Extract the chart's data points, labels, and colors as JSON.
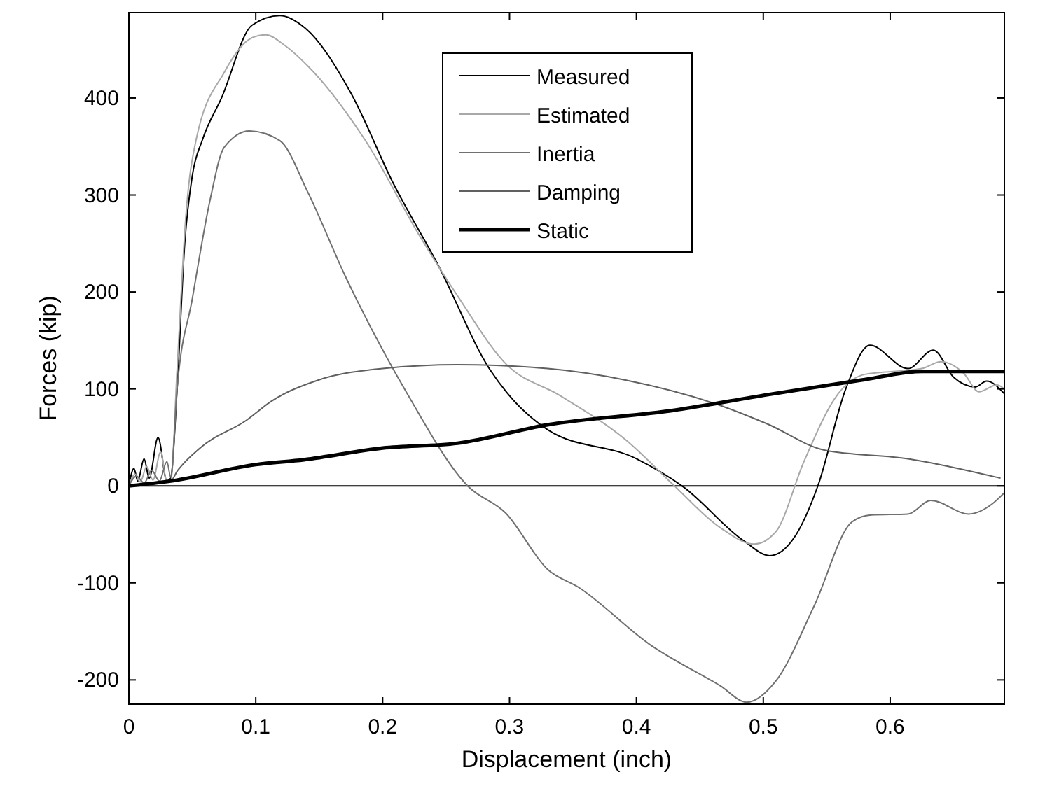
{
  "chart_data": {
    "type": "line",
    "xlabel": "Displacement (inch)",
    "ylabel": "Forces (kip)",
    "xlim": [
      0,
      0.69
    ],
    "ylim": [
      -225,
      488
    ],
    "xticks": [
      0,
      0.1,
      0.2,
      0.3,
      0.4,
      0.5,
      0.6
    ],
    "yticks": [
      -200,
      -100,
      0,
      100,
      200,
      300,
      400
    ],
    "grid": false,
    "legend": "top",
    "marker": "none",
    "line_style": "solid",
    "ref_lines": [
      {
        "axis": "y",
        "value": 0,
        "color": "#000000"
      }
    ],
    "series": [
      {
        "name": "Measured",
        "color": "#000000",
        "x": [
          0,
          0.004,
          0.007,
          0.012,
          0.016,
          0.023,
          0.03,
          0.033,
          0.038,
          0.044,
          0.05,
          0.058,
          0.073,
          0.097,
          0.119,
          0.139,
          0.175,
          0.208,
          0.244,
          0.285,
          0.298,
          0.33,
          0.4,
          0.437,
          0.485,
          0.505,
          0.525,
          0.543,
          0.565,
          0.584,
          0.614,
          0.634,
          0.65,
          0.667,
          0.676,
          0.69
        ],
        "values": [
          0,
          18,
          5,
          28,
          8,
          50,
          5,
          8,
          100,
          250,
          320,
          357,
          400,
          475,
          485,
          472,
          405,
          313,
          227,
          119,
          96,
          58,
          28,
          -1,
          -57,
          -72,
          -52,
          0,
          100,
          145,
          121,
          140,
          112,
          102,
          108,
          95
        ]
      },
      {
        "name": "Estimated",
        "color": "#a8a8a8",
        "x": [
          0,
          0.005,
          0.009,
          0.014,
          0.019,
          0.025,
          0.03,
          0.033,
          0.038,
          0.045,
          0.053,
          0.075,
          0.097,
          0.108,
          0.122,
          0.141,
          0.186,
          0.23,
          0.26,
          0.297,
          0.34,
          0.392,
          0.43,
          0.466,
          0.493,
          0.51,
          0.532,
          0.559,
          0.58,
          0.625,
          0.64,
          0.658,
          0.67,
          0.684,
          0.69
        ],
        "values": [
          0,
          12,
          4,
          20,
          6,
          35,
          4,
          5,
          120,
          280,
          357,
          426,
          462,
          465,
          455,
          433,
          357,
          256,
          194,
          126,
          93,
          47,
          0,
          -43,
          -60,
          -47,
          25,
          95,
          115,
          121,
          128,
          116,
          97,
          104,
          100
        ]
      },
      {
        "name": "Inertia",
        "color": "#707070",
        "x": [
          0,
          0.006,
          0.012,
          0.018,
          0.024,
          0.03,
          0.033,
          0.038,
          0.05,
          0.064,
          0.075,
          0.095,
          0.119,
          0.141,
          0.171,
          0.219,
          0.267,
          0.297,
          0.33,
          0.355,
          0.41,
          0.466,
          0.487,
          0.51,
          0.54,
          0.57,
          0.585,
          0.614,
          0.632,
          0.662,
          0.68,
          0.69
        ],
        "values": [
          0,
          10,
          3,
          16,
          5,
          25,
          9,
          100,
          193,
          295,
          349,
          366,
          356,
          303,
          215,
          96,
          0,
          -28,
          -86,
          -105,
          -163,
          -206,
          -223,
          -201,
          -124,
          -37,
          -30,
          -29,
          -15,
          -29,
          -19,
          -7
        ]
      },
      {
        "name": "Damping",
        "color": "#606060",
        "x": [
          0,
          0.033,
          0.038,
          0.056,
          0.093,
          0.112,
          0.149,
          0.2,
          0.259,
          0.33,
          0.392,
          0.466,
          0.503,
          0.548,
          0.614,
          0.687
        ],
        "values": [
          0,
          5,
          15,
          39,
          68,
          87,
          109,
          121,
          125,
          121,
          109,
          83,
          64,
          37,
          28,
          8
        ]
      },
      {
        "name": "Static",
        "color": "#000000",
        "x": [
          0,
          0.033,
          0.1,
          0.138,
          0.2,
          0.259,
          0.33,
          0.43,
          0.503,
          0.577,
          0.625,
          0.69
        ],
        "values": [
          0,
          5,
          22,
          27,
          39,
          44,
          63,
          78,
          94,
          109,
          118,
          118
        ]
      }
    ]
  }
}
